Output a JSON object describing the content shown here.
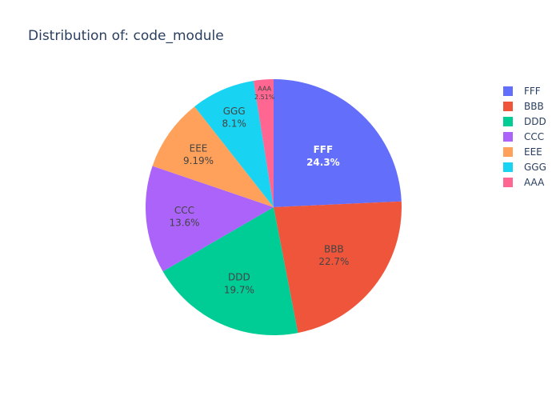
{
  "chart_data": {
    "type": "pie",
    "title": "Distribution of: code_module",
    "sort": "descending",
    "direction": "clockwise",
    "start_angle_deg": 90,
    "legend_position": "top-right",
    "slices": [
      {
        "label": "FFF",
        "percent_text": "24.3%",
        "value": 24.3,
        "color": "#636efa",
        "text_color": "#ffffff",
        "bold": true
      },
      {
        "label": "BBB",
        "percent_text": "22.7%",
        "value": 22.7,
        "color": "#EF553B",
        "text_color": "#444444",
        "bold": false
      },
      {
        "label": "DDD",
        "percent_text": "19.7%",
        "value": 19.7,
        "color": "#00cc96",
        "text_color": "#444444",
        "bold": false
      },
      {
        "label": "CCC",
        "percent_text": "13.6%",
        "value": 13.6,
        "color": "#ab63fa",
        "text_color": "#444444",
        "bold": false
      },
      {
        "label": "EEE",
        "percent_text": "9.19%",
        "value": 9.19,
        "color": "#FFA15A",
        "text_color": "#444444",
        "bold": false
      },
      {
        "label": "GGG",
        "percent_text": "8.1%",
        "value": 8.1,
        "color": "#19d3f3",
        "text_color": "#444444",
        "bold": false
      },
      {
        "label": "AAA",
        "percent_text": "2.51%",
        "value": 2.51,
        "color": "#FF6692",
        "text_color": "#444444",
        "bold": false
      }
    ]
  }
}
